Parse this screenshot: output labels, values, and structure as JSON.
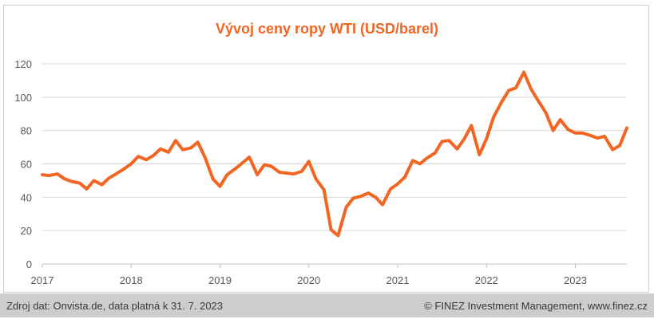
{
  "chart_data": {
    "type": "line",
    "title": "Vývoj ceny ropy WTI (USD/barel)",
    "xlabel": "",
    "ylabel": "",
    "ylim": [
      0,
      120
    ],
    "yticks": [
      0,
      20,
      40,
      60,
      80,
      100,
      120
    ],
    "xticks": [
      "2017",
      "2018",
      "2019",
      "2020",
      "2021",
      "2022",
      "2023"
    ],
    "xlim": [
      2017,
      2023.58
    ],
    "grid": "horizontal",
    "color": "#f26522",
    "series": [
      {
        "values": [
          [
            2017.0,
            53.5
          ],
          [
            2017.08,
            53.0
          ],
          [
            2017.17,
            54.0
          ],
          [
            2017.25,
            51.0
          ],
          [
            2017.33,
            49.5
          ],
          [
            2017.42,
            48.5
          ],
          [
            2017.5,
            45.0
          ],
          [
            2017.58,
            50.0
          ],
          [
            2017.67,
            47.5
          ],
          [
            2017.75,
            51.5
          ],
          [
            2017.83,
            54.0
          ],
          [
            2017.92,
            57.0
          ],
          [
            2018.0,
            60.0
          ],
          [
            2018.08,
            64.5
          ],
          [
            2018.17,
            62.5
          ],
          [
            2018.25,
            65.0
          ],
          [
            2018.33,
            69.0
          ],
          [
            2018.42,
            67.0
          ],
          [
            2018.5,
            74.0
          ],
          [
            2018.58,
            68.5
          ],
          [
            2018.67,
            69.5
          ],
          [
            2018.75,
            73.0
          ],
          [
            2018.83,
            64.0
          ],
          [
            2018.92,
            51.0
          ],
          [
            2019.0,
            46.5
          ],
          [
            2019.08,
            53.5
          ],
          [
            2019.17,
            57.0
          ],
          [
            2019.25,
            60.5
          ],
          [
            2019.33,
            64.0
          ],
          [
            2019.42,
            53.5
          ],
          [
            2019.5,
            59.5
          ],
          [
            2019.58,
            58.5
          ],
          [
            2019.67,
            55.0
          ],
          [
            2019.75,
            54.5
          ],
          [
            2019.83,
            54.0
          ],
          [
            2019.92,
            55.5
          ],
          [
            2020.0,
            61.5
          ],
          [
            2020.08,
            51.0
          ],
          [
            2020.17,
            44.5
          ],
          [
            2020.25,
            20.5
          ],
          [
            2020.33,
            17.0
          ],
          [
            2020.42,
            34.0
          ],
          [
            2020.5,
            39.5
          ],
          [
            2020.58,
            40.5
          ],
          [
            2020.67,
            42.5
          ],
          [
            2020.75,
            40.0
          ],
          [
            2020.83,
            35.5
          ],
          [
            2020.92,
            45.0
          ],
          [
            2021.0,
            48.0
          ],
          [
            2021.08,
            52.0
          ],
          [
            2021.17,
            62.0
          ],
          [
            2021.25,
            60.0
          ],
          [
            2021.33,
            63.5
          ],
          [
            2021.42,
            66.5
          ],
          [
            2021.5,
            73.5
          ],
          [
            2021.58,
            74.0
          ],
          [
            2021.67,
            69.0
          ],
          [
            2021.75,
            75.0
          ],
          [
            2021.83,
            83.0
          ],
          [
            2021.92,
            65.5
          ],
          [
            2022.0,
            75.0
          ],
          [
            2022.08,
            88.0
          ],
          [
            2022.17,
            97.0
          ],
          [
            2022.25,
            104.0
          ],
          [
            2022.33,
            105.5
          ],
          [
            2022.42,
            115.0
          ],
          [
            2022.5,
            105.0
          ],
          [
            2022.58,
            98.0
          ],
          [
            2022.67,
            90.5
          ],
          [
            2022.75,
            80.0
          ],
          [
            2022.83,
            86.5
          ],
          [
            2022.92,
            80.5
          ],
          [
            2023.0,
            78.5
          ],
          [
            2023.08,
            78.5
          ],
          [
            2023.17,
            77.0
          ],
          [
            2023.25,
            75.5
          ],
          [
            2023.33,
            76.5
          ],
          [
            2023.42,
            68.5
          ],
          [
            2023.5,
            71.0
          ],
          [
            2023.58,
            81.5
          ]
        ]
      }
    ]
  },
  "footer": {
    "source": "Zdroj dat: Onvista.de, data platná k 31. 7. 2023",
    "copyright": "© FINEZ Investment Management, www.finez.cz"
  }
}
